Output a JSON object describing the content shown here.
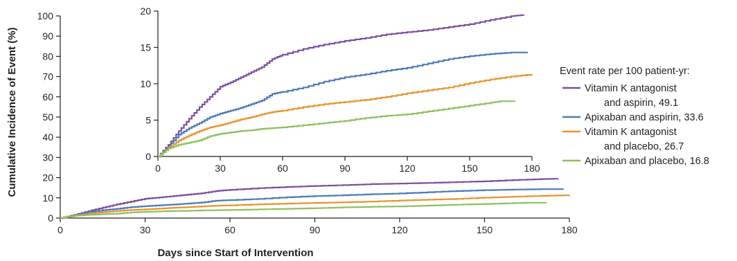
{
  "chart_data": [
    {
      "type": "line",
      "panel": "main",
      "xlabel": "Days since Start of Intervention",
      "ylabel": "Cumulative Incidence of Event (%)",
      "xlim": [
        0,
        180
      ],
      "ylim": [
        0,
        100
      ],
      "xticks": [
        0,
        30,
        60,
        90,
        120,
        150,
        180
      ],
      "yticks": [
        0,
        10,
        20,
        30,
        40,
        50,
        60,
        70,
        80,
        90,
        100
      ],
      "grid": false,
      "series": [
        {
          "key": "vka_aspirin",
          "color": "#7b4fa0",
          "x": [
            0,
            5,
            10,
            15,
            20,
            25,
            30,
            35,
            40,
            45,
            50,
            55,
            60,
            70,
            80,
            90,
            100,
            110,
            120,
            130,
            140,
            150,
            160,
            170,
            176
          ],
          "y": [
            0,
            1.6,
            3.5,
            5.2,
            6.8,
            8.2,
            9.6,
            10.2,
            10.9,
            11.6,
            12.3,
            13.4,
            14.0,
            14.8,
            15.4,
            15.9,
            16.3,
            16.8,
            17.1,
            17.4,
            17.8,
            18.2,
            18.8,
            19.3,
            19.5
          ]
        },
        {
          "key": "apix_aspirin",
          "color": "#4a7ab8",
          "x": [
            0,
            5,
            10,
            15,
            20,
            25,
            30,
            35,
            40,
            45,
            50,
            55,
            60,
            70,
            80,
            90,
            100,
            110,
            120,
            130,
            140,
            150,
            160,
            170,
            178
          ],
          "y": [
            0,
            1.4,
            3.0,
            3.9,
            4.6,
            5.4,
            5.9,
            6.3,
            6.7,
            7.2,
            7.7,
            8.6,
            8.9,
            9.5,
            10.3,
            10.9,
            11.3,
            11.8,
            12.2,
            12.8,
            13.4,
            13.8,
            14.1,
            14.3,
            14.3
          ]
        },
        {
          "key": "vka_placebo",
          "color": "#e9922e",
          "x": [
            0,
            5,
            10,
            15,
            20,
            25,
            30,
            35,
            40,
            45,
            50,
            55,
            60,
            70,
            80,
            90,
            100,
            110,
            120,
            130,
            140,
            150,
            160,
            170,
            180
          ],
          "y": [
            0,
            1.2,
            2.2,
            2.9,
            3.5,
            4.0,
            4.3,
            4.7,
            5.1,
            5.4,
            5.8,
            6.1,
            6.3,
            6.8,
            7.2,
            7.5,
            7.8,
            8.2,
            8.7,
            9.1,
            9.5,
            10.1,
            10.6,
            11.0,
            11.3
          ]
        },
        {
          "key": "apix_placebo",
          "color": "#8dc05c",
          "x": [
            0,
            5,
            10,
            15,
            20,
            25,
            30,
            35,
            40,
            45,
            50,
            55,
            60,
            70,
            80,
            90,
            100,
            110,
            120,
            130,
            140,
            150,
            160,
            165,
            172
          ],
          "y": [
            0,
            1.1,
            1.6,
            1.9,
            2.2,
            2.8,
            3.1,
            3.3,
            3.5,
            3.6,
            3.8,
            3.9,
            4.0,
            4.3,
            4.6,
            4.9,
            5.3,
            5.6,
            5.8,
            6.2,
            6.6,
            7.0,
            7.4,
            7.6,
            7.6
          ]
        }
      ]
    },
    {
      "type": "line",
      "panel": "inset",
      "xlim": [
        0,
        180
      ],
      "ylim": [
        0,
        20
      ],
      "xticks": [
        0,
        30,
        60,
        90,
        120,
        150,
        180
      ],
      "yticks": [
        0,
        5,
        10,
        15,
        20
      ],
      "grid": false,
      "series_ref": "main"
    }
  ],
  "legend": {
    "placement": "right",
    "title": "Event rate per 100 patient-yr:",
    "items": [
      {
        "key": "vka_aspirin",
        "color": "#7b4fa0",
        "line1": "Vitamin K antagonist",
        "line2": "and aspirin, 49.1"
      },
      {
        "key": "apix_aspirin",
        "color": "#4a7ab8",
        "line1": "Apixaban and aspirin, 33.6",
        "line2": ""
      },
      {
        "key": "vka_placebo",
        "color": "#e9922e",
        "line1": "Vitamin K antagonist",
        "line2": "and placebo, 26.7"
      },
      {
        "key": "apix_placebo",
        "color": "#8dc05c",
        "line1": "Apixaban and placebo, 16.8",
        "line2": ""
      }
    ]
  }
}
